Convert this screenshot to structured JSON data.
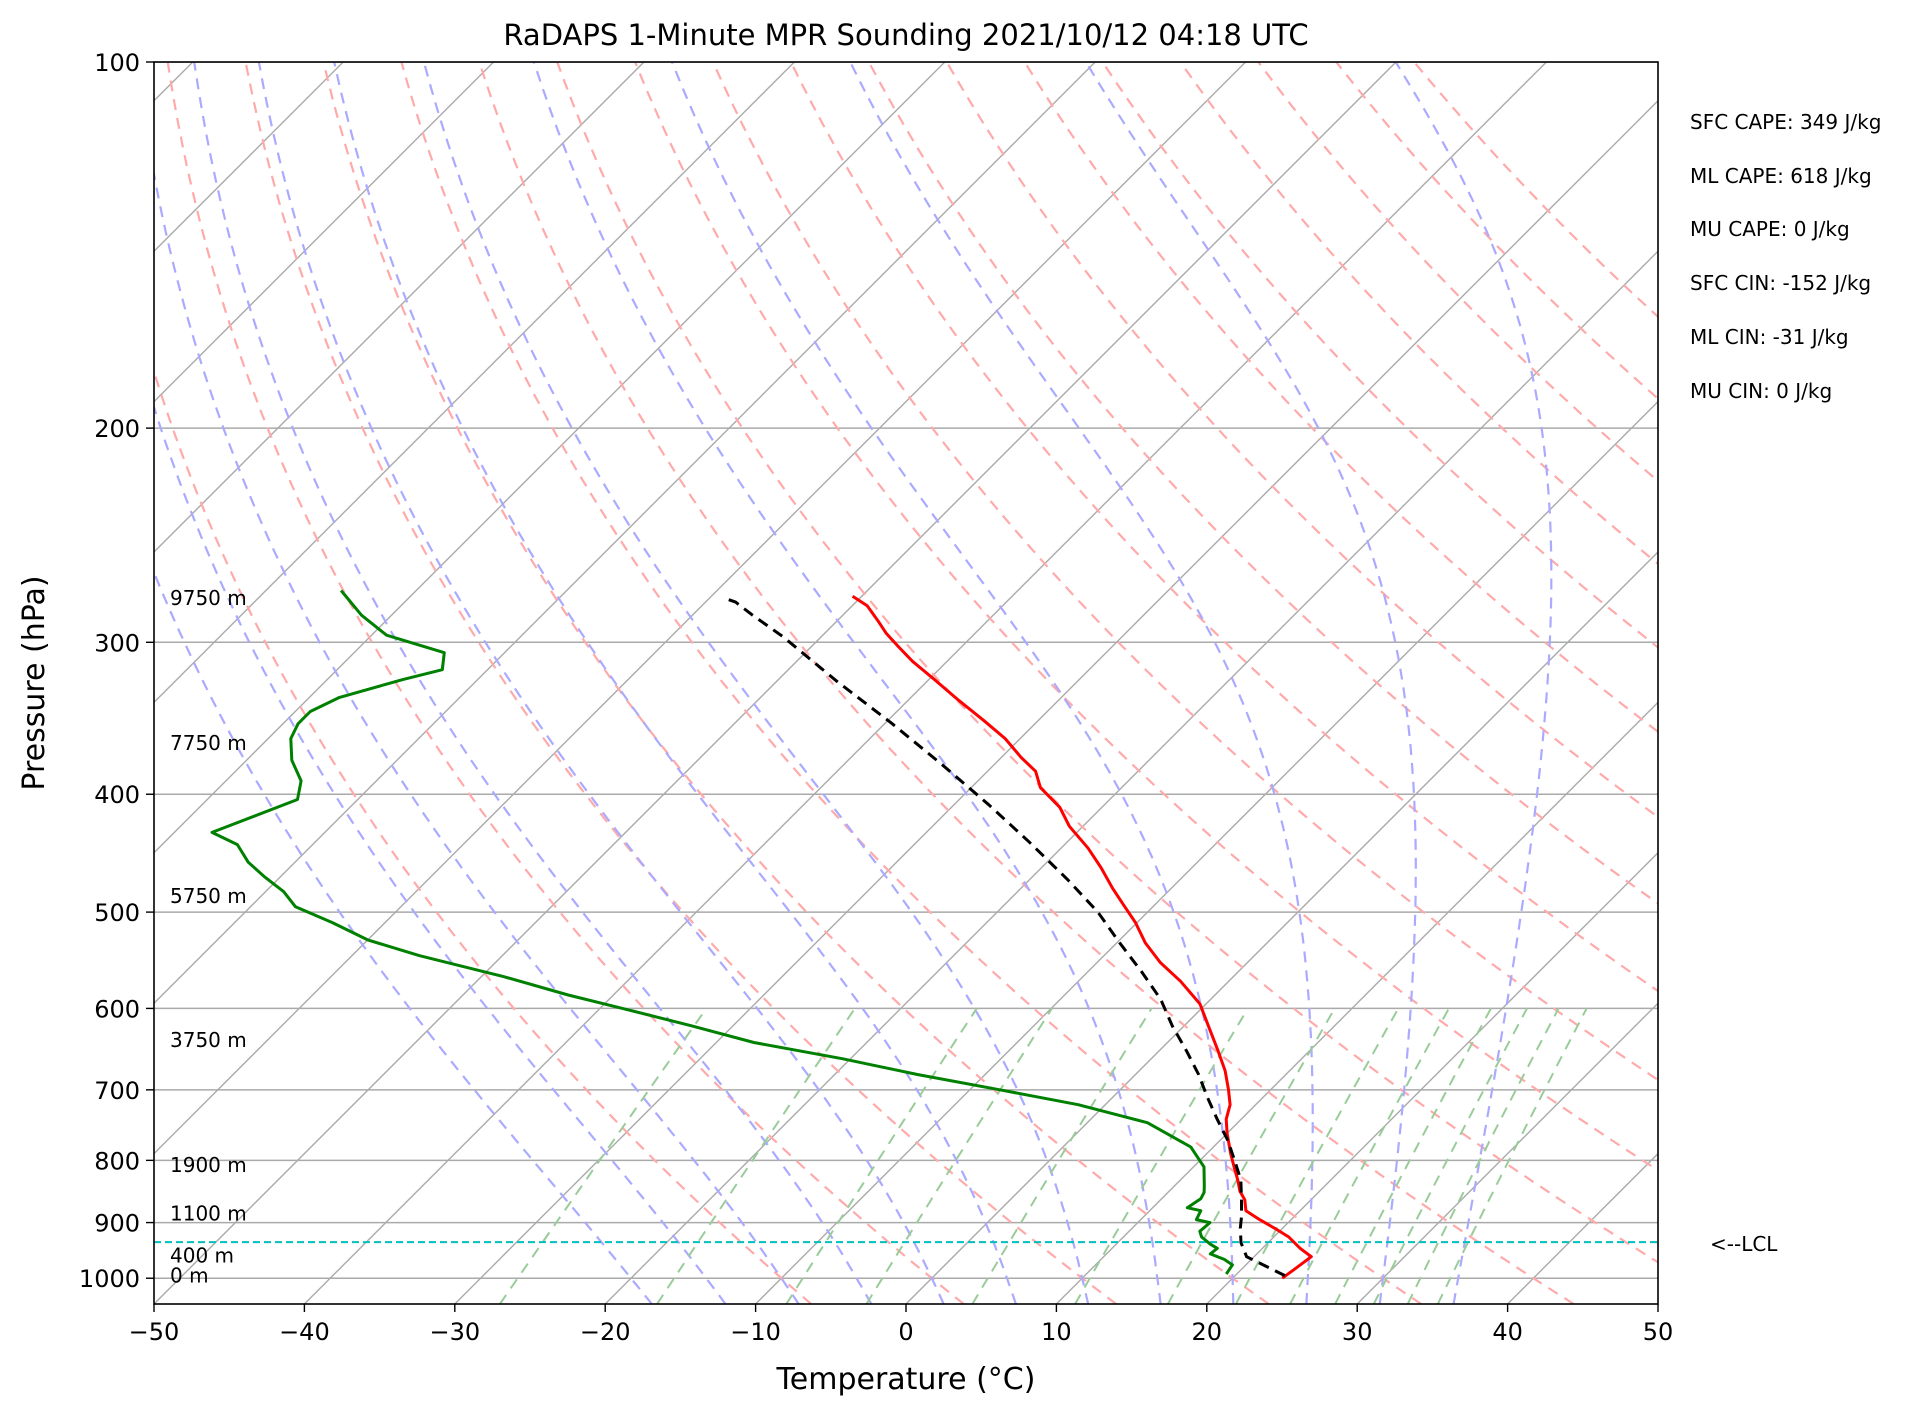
{
  "chart_data": {
    "type": "line",
    "title": "RaDAPS 1-Minute MPR Sounding 2021/10/12 04:18 UTC",
    "xlabel": "Temperature (°C)",
    "ylabel": "Pressure (hPa)",
    "xlim": [
      -50,
      50
    ],
    "ylim": [
      1050,
      100
    ],
    "y_scale": "log",
    "x_ticks": [
      -50,
      -40,
      -30,
      -20,
      -10,
      0,
      10,
      20,
      30,
      40,
      50
    ],
    "x_tick_labels": [
      "−50",
      "−40",
      "−30",
      "−20",
      "−10",
      "0",
      "10",
      "20",
      "30",
      "40",
      "50"
    ],
    "y_ticks": [
      100,
      200,
      300,
      400,
      500,
      600,
      700,
      800,
      900,
      1000
    ],
    "y_tick_labels": [
      "100",
      "200",
      "300",
      "400",
      "500",
      "600",
      "700",
      "800",
      "900",
      "1000"
    ],
    "grid": true,
    "skew_degrees": 45,
    "colors": {
      "temperature": "#ff0000",
      "dewpoint": "#008000",
      "parcel": "#000000",
      "lcl": "#00bfbf",
      "isotherm": "#aaaaaa",
      "dry_adiabat": "#ffaaaa",
      "moist_adiabat": "#aaaaff",
      "mixing_ratio": "#99cc99"
    },
    "series": [
      {
        "key": "temperature",
        "points": [
          [
            23.3,
            1000
          ],
          [
            23.5,
            985
          ],
          [
            23.8,
            960
          ],
          [
            22.5,
            945
          ],
          [
            21.0,
            925
          ],
          [
            19.5,
            910
          ],
          [
            17.9,
            895
          ],
          [
            16.4,
            880
          ],
          [
            15.6,
            862
          ],
          [
            14.7,
            848
          ],
          [
            13.8,
            830
          ],
          [
            12.7,
            810
          ],
          [
            11.6,
            790
          ],
          [
            10.0,
            760
          ],
          [
            9.0,
            740
          ],
          [
            8.3,
            720
          ],
          [
            7.2,
            700
          ],
          [
            5.7,
            675
          ],
          [
            3.9,
            650
          ],
          [
            1.6,
            620
          ],
          [
            -0.4,
            595
          ],
          [
            -3.2,
            570
          ],
          [
            -5.8,
            550
          ],
          [
            -8.1,
            530
          ],
          [
            -10.1,
            510
          ],
          [
            -12.1,
            493
          ],
          [
            -13.9,
            478
          ],
          [
            -16.0,
            460
          ],
          [
            -18.2,
            443
          ],
          [
            -20.9,
            425
          ],
          [
            -22.8,
            410
          ],
          [
            -25.4,
            395
          ],
          [
            -26.8,
            383
          ],
          [
            -28.7,
            373
          ],
          [
            -31.0,
            360
          ],
          [
            -33.6,
            348
          ],
          [
            -36.6,
            335
          ],
          [
            -39.6,
            322
          ],
          [
            -42.3,
            311
          ],
          [
            -44.1,
            303
          ],
          [
            -45.9,
            295
          ],
          [
            -47.3,
            288
          ],
          [
            -49.0,
            280
          ],
          [
            -50.6,
            275
          ]
        ]
      },
      {
        "key": "dewpoint",
        "points": [
          [
            19.3,
            992
          ],
          [
            19.1,
            975
          ],
          [
            18.2,
            965
          ],
          [
            16.9,
            955
          ],
          [
            17.0,
            945
          ],
          [
            16.3,
            938
          ],
          [
            15.2,
            925
          ],
          [
            14.7,
            915
          ],
          [
            14.8,
            900
          ],
          [
            13.7,
            895
          ],
          [
            13.4,
            880
          ],
          [
            12.3,
            875
          ],
          [
            12.6,
            860
          ],
          [
            12.4,
            850
          ],
          [
            12.0,
            840
          ],
          [
            10.7,
            810
          ],
          [
            8.5,
            780
          ],
          [
            4.0,
            745
          ],
          [
            -1.8,
            720
          ],
          [
            -8.0,
            700
          ],
          [
            -14.5,
            680
          ],
          [
            -20.5,
            660
          ],
          [
            -27.5,
            640
          ],
          [
            -32.8,
            620
          ],
          [
            -38.5,
            600
          ],
          [
            -43.0,
            585
          ],
          [
            -48.5,
            565
          ],
          [
            -55.5,
            543
          ],
          [
            -60.0,
            527
          ],
          [
            -63.5,
            510
          ],
          [
            -67.0,
            495
          ],
          [
            -68.8,
            481
          ],
          [
            -71.0,
            468
          ],
          [
            -73.1,
            455
          ],
          [
            -75.0,
            440
          ],
          [
            -77.5,
            430
          ],
          [
            -74.0,
            404
          ],
          [
            -75.0,
            390
          ],
          [
            -77.0,
            375
          ],
          [
            -78.5,
            360
          ],
          [
            -79.0,
            350
          ],
          [
            -79.0,
            342
          ],
          [
            -78.0,
            333
          ],
          [
            -75.0,
            322
          ],
          [
            -73.0,
            316
          ],
          [
            -74.0,
            306
          ],
          [
            -79.0,
            296
          ],
          [
            -82.0,
            285
          ],
          [
            -85.0,
            272
          ]
        ]
      },
      {
        "key": "parcel",
        "points": [
          [
            23.3,
            995
          ],
          [
            19.5,
            960
          ],
          [
            18.2,
            935
          ],
          [
            17.2,
            910
          ],
          [
            16.5,
            890
          ],
          [
            15.3,
            860
          ],
          [
            14.0,
            830
          ],
          [
            12.3,
            800
          ],
          [
            10.5,
            770
          ],
          [
            8.4,
            740
          ],
          [
            6.3,
            710
          ],
          [
            4.2,
            680
          ],
          [
            1.8,
            650
          ],
          [
            -0.8,
            620
          ],
          [
            -3.3,
            590
          ],
          [
            -6.4,
            560
          ],
          [
            -9.8,
            530
          ],
          [
            -13.3,
            500
          ],
          [
            -17.5,
            470
          ],
          [
            -22.5,
            438
          ],
          [
            -27.7,
            408
          ],
          [
            -33.5,
            378
          ],
          [
            -39.5,
            350
          ],
          [
            -46.0,
            323
          ],
          [
            -52.5,
            297
          ],
          [
            -56.0,
            285
          ],
          [
            -58.0,
            278
          ],
          [
            -59.0,
            276
          ]
        ]
      }
    ],
    "lcl_pressure": 934,
    "lcl_label": "<--LCL",
    "height_labels": [
      {
        "text": "9750 m",
        "pressure": 276
      },
      {
        "text": "7750 m",
        "pressure": 363
      },
      {
        "text": "5750 m",
        "pressure": 485
      },
      {
        "text": "3750 m",
        "pressure": 637
      },
      {
        "text": "1900 m",
        "pressure": 807
      },
      {
        "text": "1100 m",
        "pressure": 885
      },
      {
        "text": "400 m",
        "pressure": 958
      },
      {
        "text": "0 m",
        "pressure": 995
      }
    ],
    "annotations": [
      "SFC CAPE: 349 J/kg",
      "ML CAPE: 618 J/kg",
      "MU CAPE: 0 J/kg",
      "SFC CIN: -152 J/kg",
      "ML CIN: -31 J/kg",
      "MU CIN: 0 J/kg"
    ],
    "background_lines": {
      "isotherms_c": [
        -160,
        -150,
        -140,
        -130,
        -120,
        -110,
        -100,
        -90,
        -80,
        -70,
        -60,
        -50,
        -40,
        -30,
        -20,
        -10,
        0,
        10,
        20,
        30,
        40,
        50
      ],
      "dry_adiabats_c": [
        -10,
        0,
        10,
        20,
        30,
        40,
        50,
        60,
        70,
        80,
        90,
        100,
        110,
        120,
        130,
        140,
        150,
        160
      ],
      "moist_adiabats_c": [
        -20,
        -15,
        -10,
        -5,
        0,
        5,
        10,
        15,
        20,
        25,
        30,
        35
      ],
      "mixing_ratios_g_kg": [
        0.4,
        1,
        2,
        3,
        5,
        8,
        12,
        16,
        20,
        24,
        28,
        32,
        36
      ]
    }
  }
}
